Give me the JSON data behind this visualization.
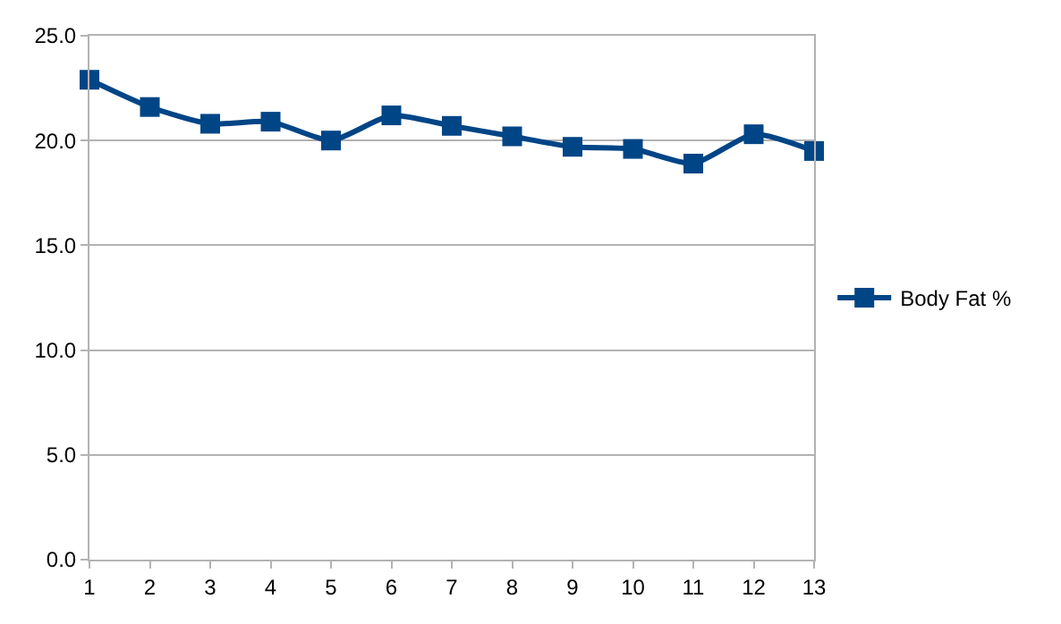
{
  "chart_data": {
    "type": "line",
    "x": [
      1,
      2,
      3,
      4,
      5,
      6,
      7,
      8,
      9,
      10,
      11,
      12,
      13
    ],
    "series": [
      {
        "name": "Body Fat %",
        "color": "#004586",
        "values": [
          22.9,
          21.6,
          20.8,
          20.9,
          20.0,
          21.2,
          20.7,
          20.2,
          19.7,
          19.6,
          18.9,
          20.3,
          19.5
        ]
      }
    ],
    "xlim": [
      1,
      13
    ],
    "xticks": [
      1,
      2,
      3,
      4,
      5,
      6,
      7,
      8,
      9,
      10,
      11,
      12,
      13
    ],
    "ylim": [
      0,
      25
    ],
    "yticks": [
      {
        "value": 0,
        "label": "0.0"
      },
      {
        "value": 5,
        "label": "5.0"
      },
      {
        "value": 10,
        "label": "10.0"
      },
      {
        "value": 15,
        "label": "15.0"
      },
      {
        "value": 20,
        "label": "20.0"
      },
      {
        "value": 25,
        "label": "25.0"
      }
    ],
    "grid": "y",
    "legend": "right",
    "marker": "square",
    "line_style": "solid"
  }
}
